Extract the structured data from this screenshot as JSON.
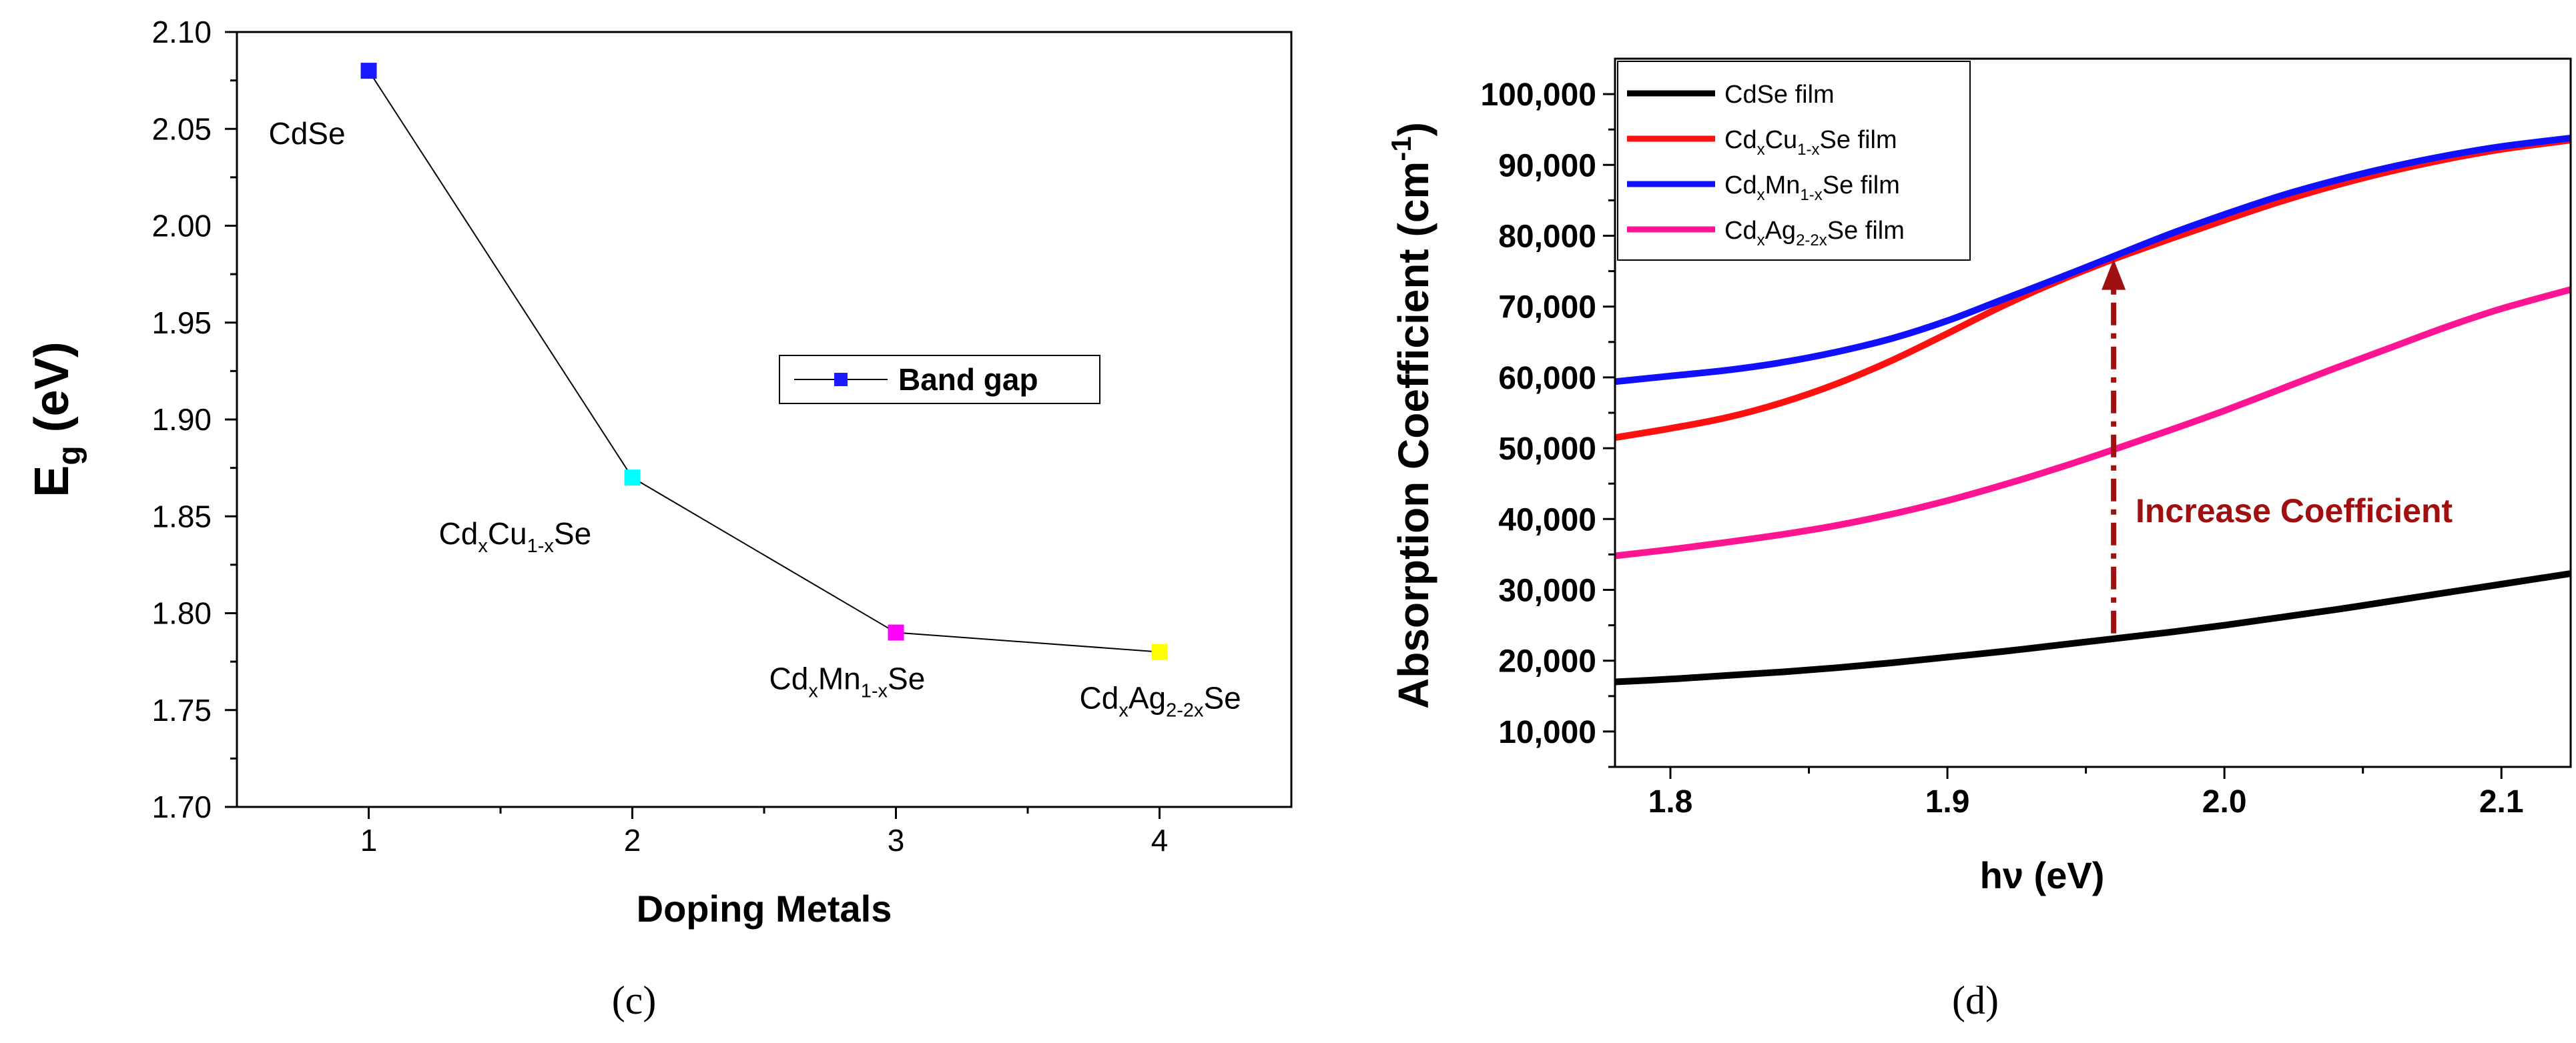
{
  "chart_data": [
    {
      "type": "line",
      "panel_label": "(c)",
      "xlabel": "Doping Metals",
      "ylabel_main": "E",
      "ylabel_sub": "g",
      "ylabel_unit": " (eV)",
      "xlim": [
        0.5,
        4.5
      ],
      "ylim": [
        1.7,
        2.1
      ],
      "x_ticks": [
        1,
        2,
        3,
        4
      ],
      "x_tick_labels": [
        "1",
        "2",
        "3",
        "4"
      ],
      "y_ticks": [
        1.7,
        1.75,
        1.8,
        1.85,
        1.9,
        1.95,
        2.0,
        2.05,
        2.1
      ],
      "y_tick_labels": [
        "1.70",
        "1.75",
        "1.80",
        "1.85",
        "1.90",
        "1.95",
        "2.00",
        "2.05",
        "2.10"
      ],
      "legend": "Band gap",
      "series": [
        {
          "name": "Band gap",
          "x": [
            1,
            2,
            3,
            4
          ],
          "values": [
            2.08,
            1.87,
            1.79,
            1.78
          ],
          "marker_colors": [
            "#1a1aff",
            "#00ffff",
            "#ff00ff",
            "#ffff00"
          ]
        }
      ],
      "point_labels": [
        {
          "base": "CdSe",
          "parts": []
        },
        {
          "base": "Cd",
          "parts": [
            [
              "x",
              "Cu"
            ],
            [
              "1-x",
              "Se"
            ]
          ]
        },
        {
          "base": "Cd",
          "parts": [
            [
              "x",
              "Mn"
            ],
            [
              "1-x",
              "Se"
            ]
          ]
        },
        {
          "base": "Cd",
          "parts": [
            [
              "x",
              "Ag"
            ],
            [
              "2-2x",
              "Se"
            ]
          ]
        }
      ]
    },
    {
      "type": "line",
      "panel_label": "(d)",
      "xlabel": "hν (eV)",
      "ylabel_main": "Absorption Coefficient (cm",
      "ylabel_sup": "-1",
      "ylabel_close": ")",
      "xlim": [
        1.78,
        2.125
      ],
      "ylim": [
        5000,
        105000
      ],
      "x_ticks": [
        1.8,
        1.9,
        2.0,
        2.1
      ],
      "x_tick_labels": [
        "1.8",
        "1.9",
        "2.0",
        "2.1"
      ],
      "y_ticks": [
        10000,
        20000,
        30000,
        40000,
        50000,
        60000,
        70000,
        80000,
        90000,
        100000
      ],
      "y_tick_labels": [
        "10,000",
        "20,000",
        "30,000",
        "40,000",
        "50,000",
        "60,000",
        "70,000",
        "80,000",
        "90,000",
        "100,000"
      ],
      "x": [
        1.78,
        1.8,
        1.82,
        1.84,
        1.86,
        1.88,
        1.9,
        1.92,
        1.94,
        1.96,
        1.98,
        2.0,
        2.02,
        2.04,
        2.06,
        2.08,
        2.1,
        2.125
      ],
      "series": [
        {
          "name": "CdSe film",
          "color": "#000000",
          "values": [
            17000,
            17400,
            17900,
            18400,
            19000,
            19700,
            20500,
            21300,
            22200,
            23100,
            24000,
            25000,
            26100,
            27200,
            28400,
            29600,
            30800,
            32300
          ]
        },
        {
          "name": "CdxCu1-xSe film",
          "color": "#ff1010",
          "values": [
            51500,
            52800,
            54300,
            56400,
            59100,
            62400,
            66200,
            70100,
            73600,
            76700,
            79500,
            82200,
            84800,
            87100,
            89100,
            90800,
            92200,
            93500
          ]
        },
        {
          "name": "CdxMn1-xSe film",
          "color": "#1010ff",
          "values": [
            59400,
            60200,
            61000,
            62100,
            63600,
            65500,
            68000,
            71000,
            74000,
            77100,
            80200,
            83000,
            85600,
            87800,
            89700,
            91300,
            92600,
            93800
          ]
        },
        {
          "name": "CdxAg2-2xSe film",
          "color": "#ff1493",
          "values": [
            34800,
            35700,
            36700,
            37800,
            39100,
            40700,
            42600,
            44800,
            47200,
            49800,
            52500,
            55300,
            58300,
            61300,
            64200,
            67100,
            69700,
            72400
          ]
        }
      ],
      "legend": [
        {
          "base": "CdSe film",
          "parts": []
        },
        {
          "base": "Cd",
          "parts": [
            [
              "x",
              "Cu"
            ],
            [
              "1-x",
              "Se film"
            ]
          ]
        },
        {
          "base": "Cd",
          "parts": [
            [
              "x",
              "Mn"
            ],
            [
              "1-x",
              "Se film"
            ]
          ]
        },
        {
          "base": "Cd",
          "parts": [
            [
              "x",
              "Ag"
            ],
            [
              "2-2x",
              "Se film"
            ]
          ]
        }
      ],
      "annotation": {
        "text": "Increase Coefficient",
        "color": "#a01010",
        "arrow_x": 1.96,
        "arrow_from_y": 23100,
        "arrow_to_y": 76500
      }
    }
  ]
}
